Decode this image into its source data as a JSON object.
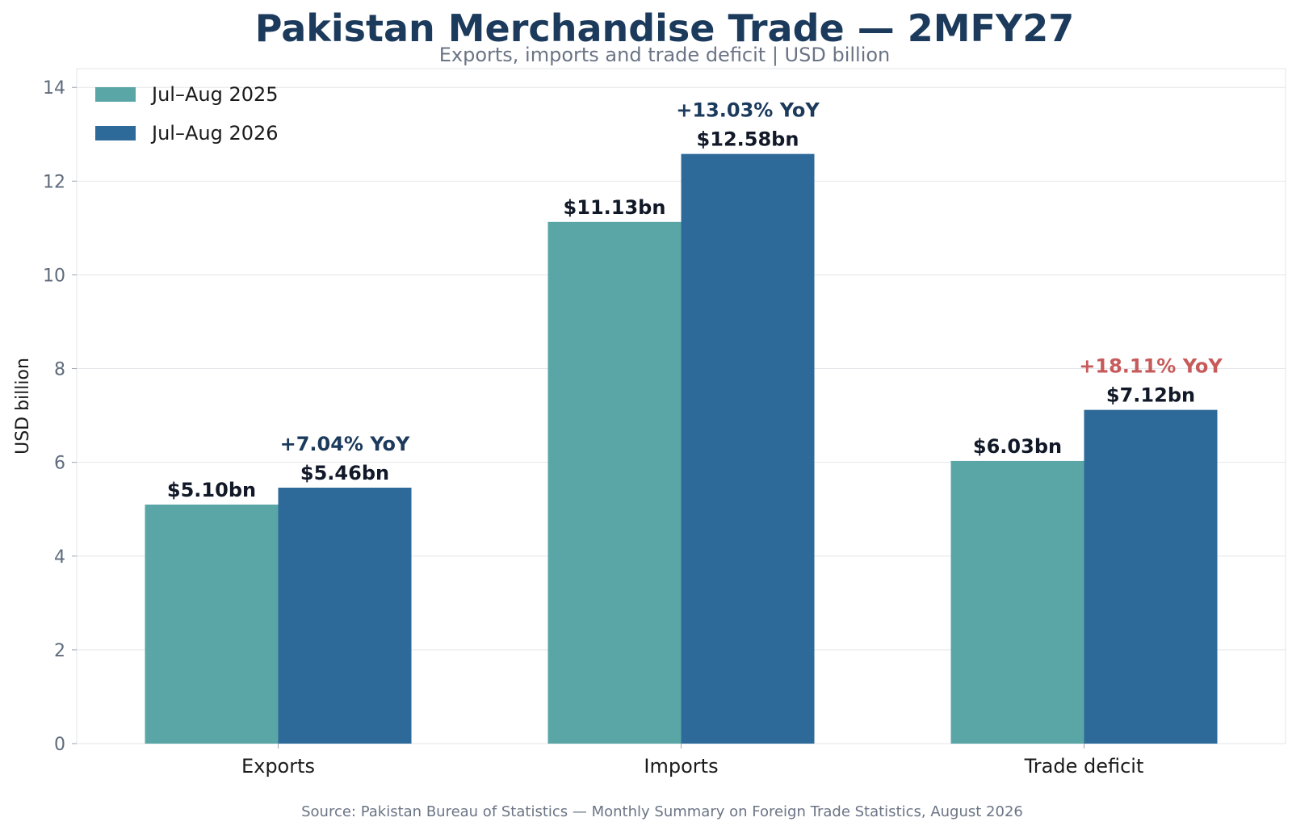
{
  "colors": {
    "series_2025": "#5aa6a7",
    "series_2026": "#2e6a99",
    "title": "#1b3a5c",
    "yoy_positive": "#1b3a5c",
    "yoy_negative": "#c75a5a",
    "grid": "#e3e6ea"
  },
  "chart_data": {
    "type": "bar",
    "title": "Pakistan Merchandise Trade — 2MFY27",
    "subtitle": "Exports, imports and trade deficit | USD billion",
    "ylabel": "USD billion",
    "xlabel": "",
    "ylim": [
      0,
      14.4
    ],
    "yticks": [
      0,
      2,
      4,
      6,
      8,
      10,
      12,
      14
    ],
    "grid": true,
    "legend": "top-left",
    "categories": [
      "Exports",
      "Imports",
      "Trade deficit"
    ],
    "series": [
      {
        "name": "Jul–Aug 2025",
        "values": [
          5.1,
          11.13,
          6.03
        ],
        "labels": [
          "$5.10bn",
          "$11.13bn",
          "$6.03bn"
        ]
      },
      {
        "name": "Jul–Aug 2026",
        "values": [
          5.46,
          12.58,
          7.12
        ],
        "labels": [
          "$5.46bn",
          "$12.58bn",
          "$7.12bn"
        ]
      }
    ],
    "annotations": [
      {
        "category": "Exports",
        "text": "+7.04% YoY",
        "tone": "positive"
      },
      {
        "category": "Imports",
        "text": "+13.03% YoY",
        "tone": "positive"
      },
      {
        "category": "Trade deficit",
        "text": "+18.11% YoY",
        "tone": "negative"
      }
    ],
    "source": "Source: Pakistan Bureau of Statistics — Monthly Summary on Foreign Trade Statistics, August 2026"
  }
}
